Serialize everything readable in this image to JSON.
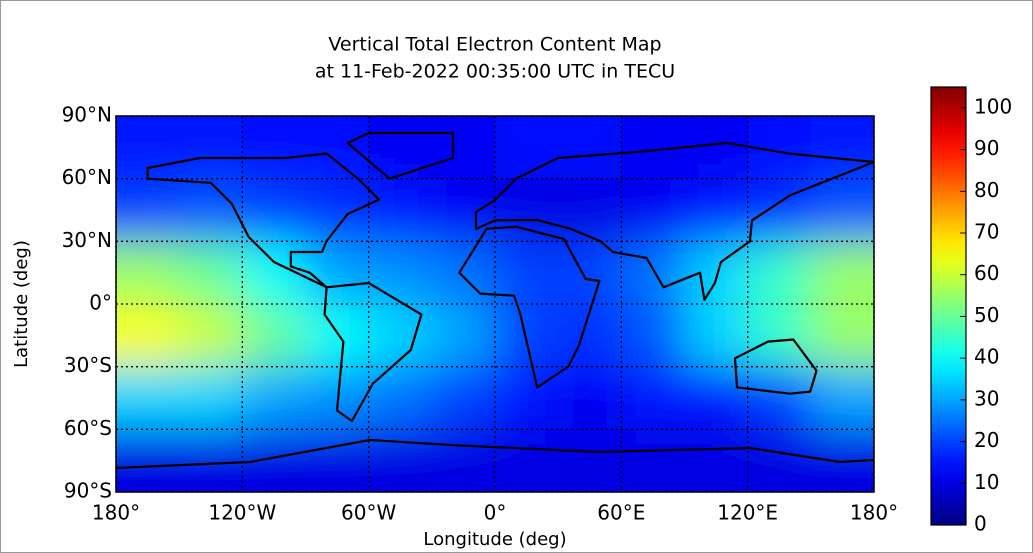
{
  "chart_data": {
    "type": "heatmap",
    "title": [
      "Vertical Total Electron Content Map",
      "at 11-Feb-2022 00:35:00 UTC in TECU"
    ],
    "xlabel": "Longitude (deg)",
    "ylabel": "Latitude (deg)",
    "xlim": [
      -180,
      180
    ],
    "ylim": [
      -90,
      90
    ],
    "xticks": [
      {
        "value": -180,
        "label": "180°"
      },
      {
        "value": -120,
        "label": "120°W"
      },
      {
        "value": -60,
        "label": "60°W"
      },
      {
        "value": 0,
        "label": "0°"
      },
      {
        "value": 60,
        "label": "60°E"
      },
      {
        "value": 120,
        "label": "120°E"
      },
      {
        "value": 180,
        "label": "180°"
      }
    ],
    "yticks": [
      {
        "value": -90,
        "label": "90°S"
      },
      {
        "value": -60,
        "label": "60°S"
      },
      {
        "value": -30,
        "label": "30°S"
      },
      {
        "value": 0,
        "label": "0°"
      },
      {
        "value": 30,
        "label": "30°N"
      },
      {
        "value": 60,
        "label": "60°N"
      },
      {
        "value": 90,
        "label": "90°N"
      }
    ],
    "grid": true,
    "colormap": "jet",
    "zlim": [
      0,
      105
    ],
    "zticks": [
      0,
      10,
      20,
      30,
      40,
      50,
      60,
      70,
      80,
      90,
      100
    ],
    "x": [
      -165,
      -135,
      -105,
      -75,
      -45,
      -15,
      15,
      45,
      75,
      105,
      135,
      165
    ],
    "y": [
      75,
      45,
      15,
      -15,
      -45,
      -75
    ],
    "z": [
      [
        15,
        15,
        14,
        14,
        12,
        12,
        14,
        14,
        12,
        12,
        14,
        15
      ],
      [
        20,
        22,
        20,
        18,
        15,
        12,
        10,
        10,
        12,
        15,
        18,
        22
      ],
      [
        55,
        50,
        40,
        30,
        28,
        25,
        20,
        20,
        25,
        35,
        45,
        55
      ],
      [
        65,
        60,
        50,
        40,
        35,
        30,
        20,
        18,
        22,
        35,
        45,
        55
      ],
      [
        35,
        35,
        30,
        28,
        25,
        20,
        15,
        12,
        15,
        15,
        20,
        30
      ],
      [
        10,
        10,
        10,
        10,
        10,
        10,
        10,
        10,
        10,
        10,
        10,
        10
      ]
    ]
  }
}
